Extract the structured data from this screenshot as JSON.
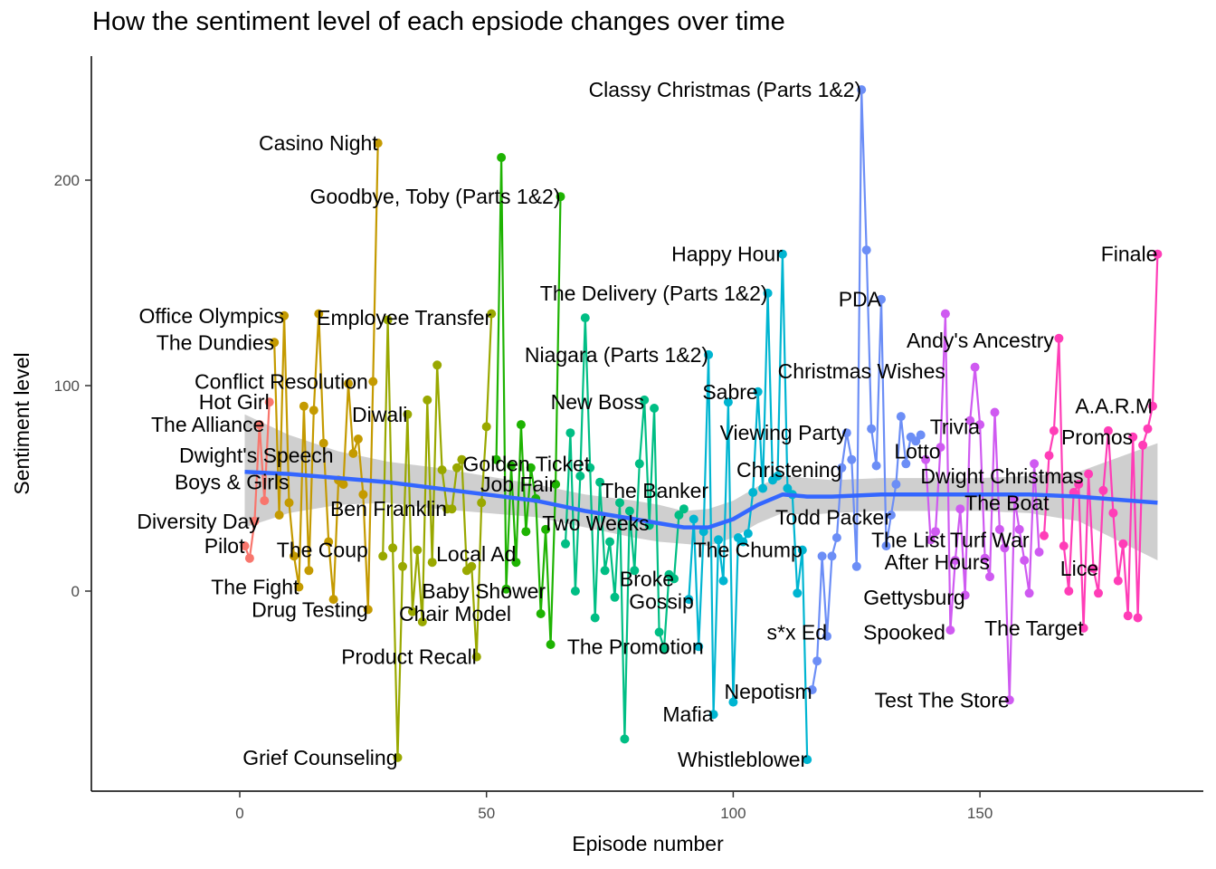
{
  "chart_data": {
    "type": "line",
    "title": "How the sentiment level of each epsiode changes over time",
    "xlabel": "Episode number",
    "ylabel": "Sentiment level",
    "xlim": [
      -30,
      196
    ],
    "ylim": [
      -97,
      255
    ],
    "xticks": [
      0,
      50,
      100,
      150
    ],
    "yticks": [
      0,
      100,
      200
    ],
    "grid": false,
    "legend": "none",
    "seasons": [
      {
        "color": "#F8766D",
        "x": [
          1,
          2,
          3,
          4,
          5,
          6
        ],
        "y": [
          22,
          16,
          34,
          81,
          44,
          92
        ]
      },
      {
        "color": "#C49A00",
        "x": [
          7,
          8,
          9,
          10,
          11,
          12,
          13,
          14,
          15,
          16,
          17,
          18,
          19,
          20,
          21,
          22,
          23,
          24,
          25,
          26,
          27,
          28
        ],
        "y": [
          121,
          37,
          134,
          43,
          17,
          2,
          90,
          10,
          88,
          135,
          72,
          24,
          -4,
          54,
          52,
          101,
          67,
          74,
          47,
          -9,
          102,
          218
        ]
      },
      {
        "color": "#99A800",
        "x": [
          29,
          30,
          31,
          32,
          33,
          34,
          35,
          36,
          37,
          38,
          39,
          40,
          41,
          42,
          43,
          44,
          45,
          46,
          47,
          48,
          49,
          50,
          51
        ],
        "y": [
          17,
          132,
          21,
          -81,
          12,
          86,
          -10,
          20,
          -15,
          93,
          14,
          110,
          59,
          40,
          40,
          60,
          64,
          10,
          12,
          -32,
          43,
          80,
          135
        ]
      },
      {
        "color": "#1EB302",
        "x": [
          52,
          53,
          54,
          55,
          56,
          57,
          58,
          59,
          60,
          61,
          62,
          63,
          64,
          65
        ],
        "y": [
          64,
          211,
          1,
          61,
          14,
          81,
          29,
          60,
          45,
          -11,
          30,
          -26,
          52,
          192
        ]
      },
      {
        "color": "#00BE84",
        "x": [
          66,
          67,
          68,
          69,
          70,
          71,
          72,
          73,
          74,
          75,
          76,
          77,
          78,
          79,
          80,
          81,
          82,
          83,
          84,
          85,
          86,
          87,
          88,
          89,
          90
        ],
        "y": [
          23,
          77,
          0,
          56,
          133,
          60,
          -13,
          53,
          10,
          24,
          -3,
          43,
          -72,
          39,
          10,
          62,
          93,
          32,
          89,
          -20,
          -28,
          8,
          6,
          37,
          40
        ]
      },
      {
        "color": "#00B5D1",
        "x": [
          91,
          92,
          93,
          94,
          95,
          96,
          97,
          98,
          99,
          100,
          101,
          102,
          103,
          104,
          105,
          106,
          107,
          108,
          109,
          110,
          111,
          112,
          113,
          114,
          115
        ],
        "y": [
          -4,
          35,
          -27,
          29,
          115,
          -60,
          25,
          5,
          92,
          -54,
          26,
          24,
          28,
          48,
          97,
          50,
          145,
          54,
          56,
          164,
          50,
          47,
          -1,
          20,
          -82
        ]
      },
      {
        "color": "#6C8EF6",
        "x": [
          116,
          117,
          118,
          119,
          120,
          121,
          122,
          123,
          124,
          125,
          126,
          127,
          128,
          129,
          130,
          131,
          132,
          133,
          134,
          135,
          136,
          137,
          138
        ],
        "y": [
          -48,
          -34,
          17,
          -22,
          17,
          26,
          60,
          77,
          64,
          12,
          244,
          166,
          79,
          61,
          142,
          22,
          37,
          52,
          85,
          62,
          75,
          73,
          76
        ]
      },
      {
        "color": "#CF5AF1",
        "x": [
          139,
          140,
          141,
          142,
          143,
          144,
          145,
          146,
          147,
          148,
          149,
          150,
          151,
          152,
          153,
          154,
          155,
          156,
          157,
          158,
          159,
          160,
          161,
          162
        ],
        "y": [
          64,
          25,
          29,
          70,
          135,
          -19,
          15,
          40,
          -2,
          83,
          109,
          81,
          16,
          7,
          87,
          30,
          21,
          -53,
          45,
          30,
          15,
          -1,
          62,
          19
        ]
      },
      {
        "color": "#FF3DB7",
        "x": [
          163,
          164,
          165,
          166,
          167,
          168,
          169,
          170,
          171,
          172,
          173,
          174,
          175,
          176,
          177,
          178,
          179,
          180,
          181,
          182,
          183,
          184,
          185,
          186
        ],
        "y": [
          27,
          66,
          78,
          123,
          22,
          0,
          48,
          52,
          -18,
          57,
          11,
          -1,
          49,
          78,
          38,
          5,
          23,
          -12,
          75,
          -13,
          71,
          79,
          90,
          164
        ]
      }
    ],
    "smooth": {
      "x": [
        1,
        10,
        20,
        30,
        40,
        50,
        60,
        70,
        80,
        85,
        90,
        95,
        100,
        105,
        110,
        115,
        120,
        130,
        140,
        150,
        160,
        170,
        186
      ],
      "y": [
        58,
        57,
        55,
        53,
        50,
        47,
        44,
        39,
        35,
        33,
        31,
        31,
        35,
        42,
        47,
        46,
        46,
        47,
        47,
        47,
        47,
        46,
        43
      ],
      "ci_lower": [
        31,
        38,
        42,
        43,
        40,
        38,
        36,
        31,
        26,
        24,
        23,
        22,
        26,
        33,
        38,
        37,
        38,
        39,
        39,
        39,
        38,
        34,
        15
      ],
      "ci_upper": [
        86,
        76,
        68,
        63,
        60,
        56,
        52,
        47,
        44,
        42,
        39,
        40,
        44,
        51,
        56,
        55,
        54,
        55,
        55,
        55,
        56,
        58,
        72
      ]
    },
    "labels": [
      {
        "text": "Pilot",
        "x": 1,
        "y": 22
      },
      {
        "text": "Diversity Day",
        "x": 4,
        "y": 34
      },
      {
        "text": "Boys & Girls",
        "x": 10,
        "y": 53
      },
      {
        "text": "Dwight's Speech",
        "x": 19,
        "y": 66
      },
      {
        "text": "The Alliance",
        "x": 5,
        "y": 81
      },
      {
        "text": "Hot Girl",
        "x": 6,
        "y": 92
      },
      {
        "text": "Conflict Resolution",
        "x": 26,
        "y": 102
      },
      {
        "text": "The Dundies",
        "x": 7,
        "y": 121
      },
      {
        "text": "Office Olympics",
        "x": 9,
        "y": 134
      },
      {
        "text": "Casino Night",
        "x": 28,
        "y": 218
      },
      {
        "text": "The Fight",
        "x": 12,
        "y": 2
      },
      {
        "text": "Drug Testing",
        "x": 26,
        "y": -9
      },
      {
        "text": "The Coup",
        "x": 26,
        "y": 20
      },
      {
        "text": "Ben Franklin",
        "x": 42,
        "y": 40
      },
      {
        "text": "Diwali",
        "x": 34,
        "y": 86
      },
      {
        "text": "Employee Transfer",
        "x": 51,
        "y": 133
      },
      {
        "text": "Product Recall",
        "x": 48,
        "y": -32
      },
      {
        "text": "Grief Counseling",
        "x": 32,
        "y": -81
      },
      {
        "text": "Chair Model",
        "x": 55,
        "y": -11
      },
      {
        "text": "Baby Shower",
        "x": 62,
        "y": 0
      },
      {
        "text": "Local Ad",
        "x": 56,
        "y": 18
      },
      {
        "text": "Job Fair",
        "x": 64,
        "y": 52
      },
      {
        "text": "Golden Ticket",
        "x": 71,
        "y": 62
      },
      {
        "text": "Goodbye, Toby (Parts 1&2)",
        "x": 65,
        "y": 192
      },
      {
        "text": "Two Weeks",
        "x": 83,
        "y": 33
      },
      {
        "text": "The Banker",
        "x": 95,
        "y": 49
      },
      {
        "text": "New Boss",
        "x": 82,
        "y": 92
      },
      {
        "text": "Niagara (Parts 1&2)",
        "x": 95,
        "y": 115
      },
      {
        "text": "The Delivery (Parts 1&2)",
        "x": 107,
        "y": 145
      },
      {
        "text": "The Promotion",
        "x": 94,
        "y": -27
      },
      {
        "text": "Gossip",
        "x": 92,
        "y": -5
      },
      {
        "text": "Broke",
        "x": 88,
        "y": 6
      },
      {
        "text": "The Chump",
        "x": 114,
        "y": 20
      },
      {
        "text": "Mafia",
        "x": 96,
        "y": -60
      },
      {
        "text": "Whistleblower",
        "x": 115,
        "y": -82
      },
      {
        "text": "Nepotism",
        "x": 116,
        "y": -49
      },
      {
        "text": "s*x Ed",
        "x": 119,
        "y": -20
      },
      {
        "text": "Todd Packer",
        "x": 132,
        "y": 36
      },
      {
        "text": "Christening",
        "x": 122,
        "y": 59
      },
      {
        "text": "Viewing Party",
        "x": 123,
        "y": 77
      },
      {
        "text": "Sabre",
        "x": 105,
        "y": 97
      },
      {
        "text": "Happy Hour",
        "x": 110,
        "y": 164
      },
      {
        "text": "Classy Christmas (Parts 1&2)",
        "x": 126,
        "y": 244
      },
      {
        "text": "PDA",
        "x": 130,
        "y": 142
      },
      {
        "text": "Christmas Wishes",
        "x": 143,
        "y": 107
      },
      {
        "text": "Andy's Ancestry",
        "x": 165,
        "y": 122
      },
      {
        "text": "Lotto",
        "x": 142,
        "y": 68
      },
      {
        "text": "Trivia",
        "x": 150,
        "y": 80
      },
      {
        "text": "Dwight Christmas",
        "x": 171,
        "y": 56
      },
      {
        "text": "The Boat",
        "x": 164,
        "y": 43
      },
      {
        "text": "The List",
        "x": 143,
        "y": 25
      },
      {
        "text": "Turf War",
        "x": 160,
        "y": 25
      },
      {
        "text": "After Hours",
        "x": 152,
        "y": 14
      },
      {
        "text": "Gettysburg",
        "x": 147,
        "y": -3
      },
      {
        "text": "Spooked",
        "x": 143,
        "y": -20
      },
      {
        "text": "The Target",
        "x": 171,
        "y": -18
      },
      {
        "text": "Test The Store",
        "x": 156,
        "y": -53
      },
      {
        "text": "Lice",
        "x": 174,
        "y": 11
      },
      {
        "text": "Promos",
        "x": 181,
        "y": 75
      },
      {
        "text": "A.A.R.M",
        "x": 185,
        "y": 90
      },
      {
        "text": "Finale",
        "x": 186,
        "y": 164
      }
    ]
  }
}
